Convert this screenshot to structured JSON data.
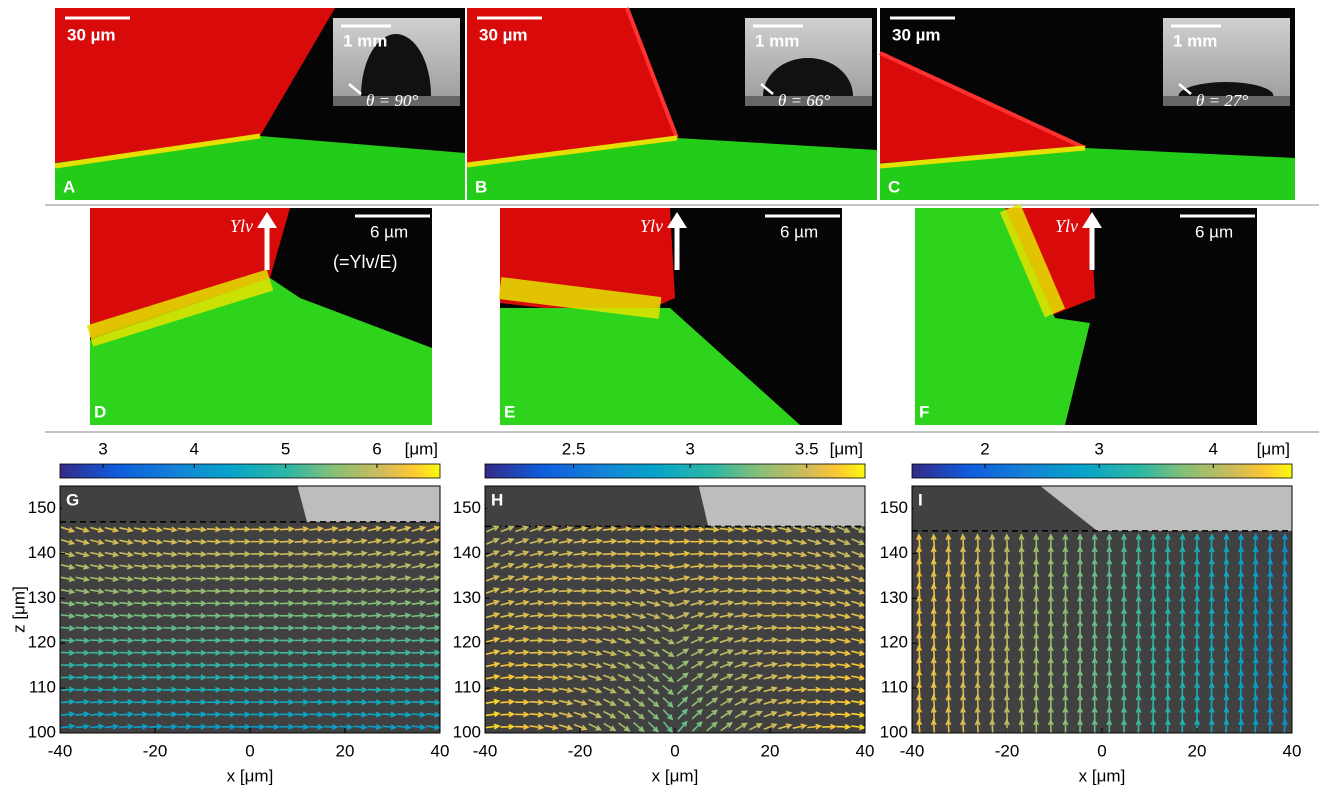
{
  "top_panels": [
    {
      "label": "A",
      "scale_bar": "30 µm",
      "inset_scale_bar": "1 mm",
      "contact_angle": "θ = 90°"
    },
    {
      "label": "B",
      "scale_bar": "30 µm",
      "inset_scale_bar": "1 mm",
      "contact_angle": "θ = 66°"
    },
    {
      "label": "C",
      "scale_bar": "30 µm",
      "inset_scale_bar": "1 mm",
      "contact_angle": "θ = 27°"
    }
  ],
  "middle_panels": [
    {
      "label": "D",
      "scale_bar": "6 µm",
      "force": "Υlv",
      "force_scale": "(=Υlv/E)"
    },
    {
      "label": "E",
      "scale_bar": "6 µm",
      "force": "Υlv"
    },
    {
      "label": "F",
      "scale_bar": "6 µm",
      "force": "Υlv"
    }
  ],
  "chart_data": [
    {
      "type": "quiver",
      "label": "G",
      "colorbar": {
        "lim": [
          2.53,
          6.69
        ],
        "ticks": [
          3,
          4,
          5,
          6
        ],
        "unit": "[μm]"
      },
      "xlim": [
        -40,
        40
      ],
      "ylim": [
        100,
        155
      ],
      "xticks": [
        -40,
        -20,
        0,
        20,
        40
      ],
      "yticks": [
        100,
        110,
        120,
        130,
        140,
        150
      ],
      "xlabel": "x [μm]",
      "ylabel": "z [μm]",
      "surface_z": 147,
      "contact_x": 12,
      "interface_top_x": 10
    },
    {
      "type": "quiver",
      "label": "H",
      "colorbar": {
        "lim": [
          2.12,
          3.75
        ],
        "ticks": [
          2.5,
          3,
          3.5
        ],
        "unit": "[μm]"
      },
      "xlim": [
        -40,
        40
      ],
      "ylim": [
        100,
        155
      ],
      "xticks": [
        -40,
        -20,
        0,
        20,
        40
      ],
      "yticks": [
        100,
        110,
        120,
        130,
        140,
        150
      ],
      "xlabel": "x [μm]",
      "surface_z": 146,
      "contact_x": 7,
      "interface_top_x": 5
    },
    {
      "type": "quiver",
      "label": "I",
      "colorbar": {
        "lim": [
          1.36,
          4.69
        ],
        "ticks": [
          2,
          3,
          4
        ],
        "unit": "[μm]"
      },
      "xlim": [
        -40,
        40
      ],
      "ylim": [
        100,
        155
      ],
      "xticks": [
        -40,
        -20,
        0,
        20,
        40
      ],
      "yticks": [
        100,
        110,
        120,
        130,
        140,
        150
      ],
      "xlabel": "x [μm]",
      "surface_z": 145,
      "contact_x": -1,
      "interface_top_x": -13
    }
  ]
}
